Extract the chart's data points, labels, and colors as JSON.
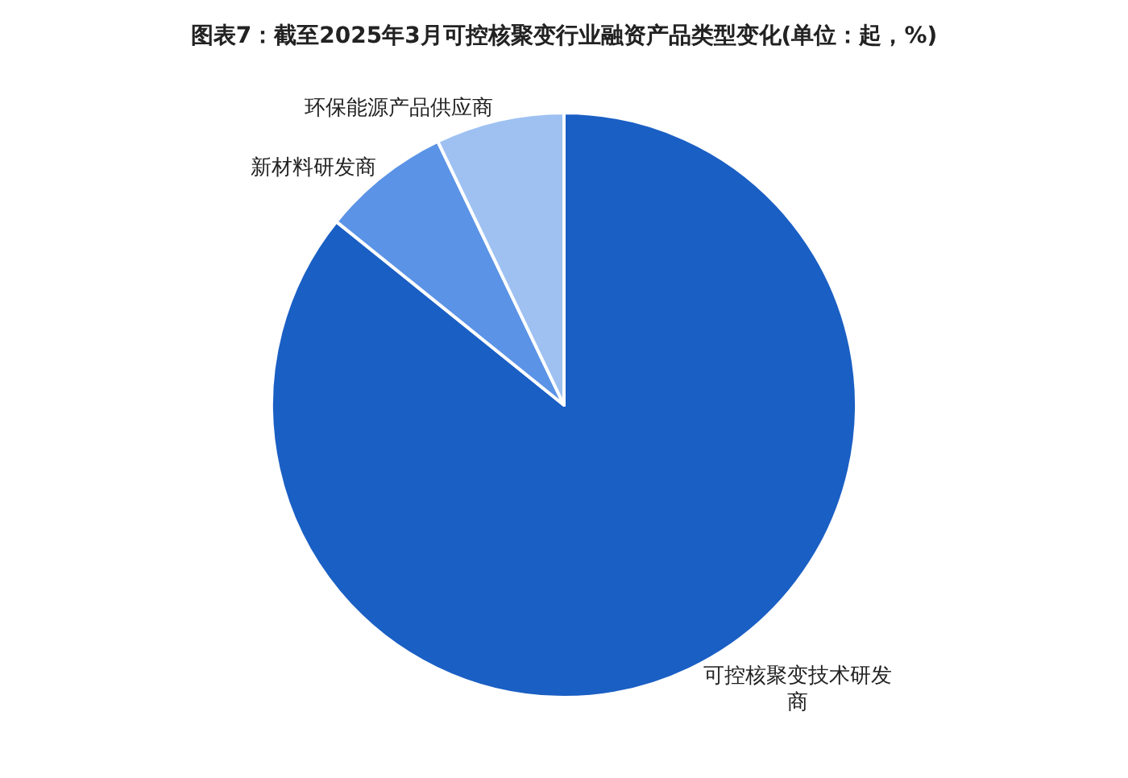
{
  "chart_data": {
    "type": "pie",
    "title": "图表7：截至2025年3月可控核聚变行业融资产品类型变化(单位：起，%)",
    "categories": [
      "可控核聚变技术研发商",
      "新材料研发商",
      "环保能源产品供应商"
    ],
    "values": [
      85.8,
      7.1,
      7.1
    ],
    "colors": [
      "#1a5fc4",
      "#5b93e6",
      "#9ec1f2"
    ],
    "legend": false
  }
}
